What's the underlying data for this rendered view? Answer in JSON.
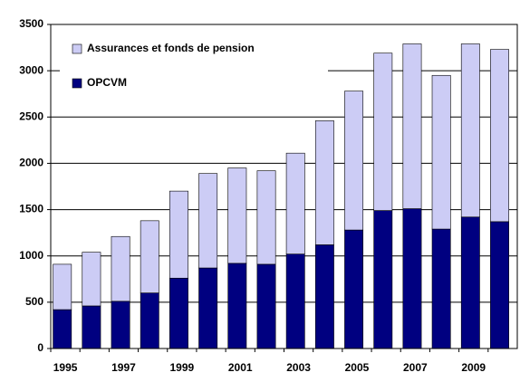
{
  "chart_data": {
    "type": "bar",
    "stacked": true,
    "categories": [
      "1995",
      null,
      "1997",
      null,
      "1999",
      null,
      "2001",
      null,
      "2003",
      null,
      "2005",
      null,
      "2007",
      null,
      "2009",
      null
    ],
    "series": [
      {
        "name": "OPCVM",
        "color": "#000080",
        "values": [
          420,
          460,
          510,
          600,
          760,
          870,
          920,
          910,
          1020,
          1120,
          1280,
          1490,
          1510,
          1290,
          1420,
          1370
        ]
      },
      {
        "name": "Assurances et fonds de pension",
        "color": "#ccccf5",
        "values": [
          490,
          580,
          700,
          780,
          940,
          1020,
          1030,
          1010,
          1090,
          1340,
          1500,
          1700,
          1780,
          1660,
          1870,
          1860
        ]
      }
    ],
    "ylim": [
      0,
      3500
    ],
    "yticks": [
      0,
      500,
      1000,
      1500,
      2000,
      2500,
      3000,
      3500
    ],
    "grid": true,
    "legend": "upper left"
  }
}
